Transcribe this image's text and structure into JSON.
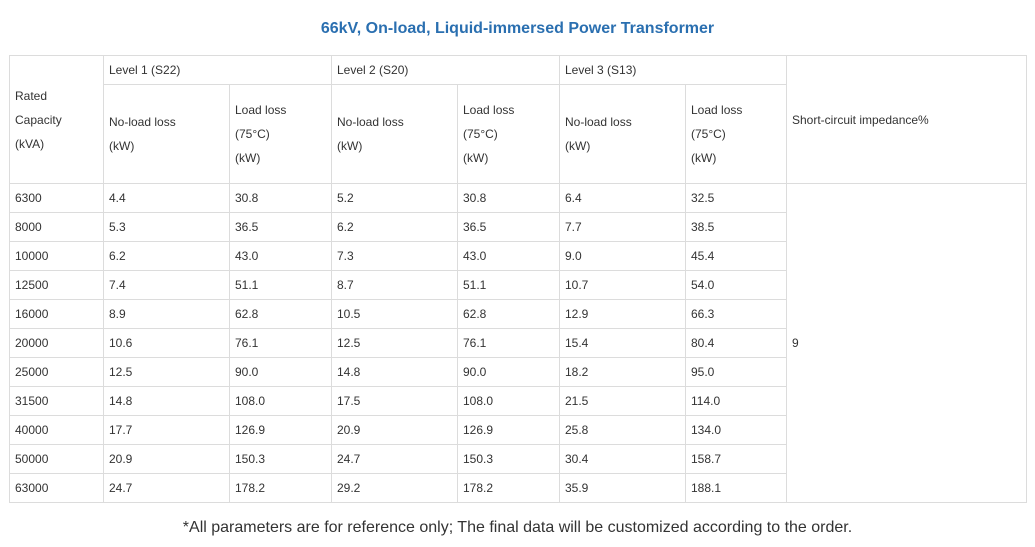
{
  "page": {
    "title": "66kV, On-load, Liquid-immersed Power Transformer",
    "note": "*All parameters are for reference only; The final data will be customized according to the order."
  },
  "colors": {
    "title": "#2a6fb0",
    "border": "#dcdcdc",
    "text": "#333333"
  },
  "chart_data": {
    "type": "table",
    "title": "66kV, On-load, Liquid-immersed Power Transformer",
    "header": {
      "rated_capacity": [
        "Rated",
        "Capacity",
        "(kVA)"
      ],
      "levels": [
        "Level 1 (S22)",
        "Level 2 (S20)",
        "Level 3 (S13)"
      ],
      "no_load_loss": [
        "No-load loss",
        "(kW)"
      ],
      "load_loss": [
        "Load loss",
        "(75°C)",
        "(kW)"
      ],
      "impedance": "Short-circuit impedance%"
    },
    "rows": [
      {
        "capacity": "6300",
        "l1_noload": "4.4",
        "l1_load": "30.8",
        "l2_noload": "5.2",
        "l2_load": "30.8",
        "l3_noload": "6.4",
        "l3_load": "32.5"
      },
      {
        "capacity": "8000",
        "l1_noload": "5.3",
        "l1_load": "36.5",
        "l2_noload": "6.2",
        "l2_load": "36.5",
        "l3_noload": "7.7",
        "l3_load": "38.5"
      },
      {
        "capacity": "10000",
        "l1_noload": "6.2",
        "l1_load": "43.0",
        "l2_noload": "7.3",
        "l2_load": "43.0",
        "l3_noload": "9.0",
        "l3_load": "45.4"
      },
      {
        "capacity": "12500",
        "l1_noload": "7.4",
        "l1_load": "51.1",
        "l2_noload": "8.7",
        "l2_load": "51.1",
        "l3_noload": "10.7",
        "l3_load": "54.0"
      },
      {
        "capacity": "16000",
        "l1_noload": "8.9",
        "l1_load": "62.8",
        "l2_noload": "10.5",
        "l2_load": "62.8",
        "l3_noload": "12.9",
        "l3_load": "66.3"
      },
      {
        "capacity": "20000",
        "l1_noload": "10.6",
        "l1_load": "76.1",
        "l2_noload": "12.5",
        "l2_load": "76.1",
        "l3_noload": "15.4",
        "l3_load": "80.4"
      },
      {
        "capacity": "25000",
        "l1_noload": "12.5",
        "l1_load": "90.0",
        "l2_noload": "14.8",
        "l2_load": "90.0",
        "l3_noload": "18.2",
        "l3_load": "95.0"
      },
      {
        "capacity": "31500",
        "l1_noload": "14.8",
        "l1_load": "108.0",
        "l2_noload": "17.5",
        "l2_load": "108.0",
        "l3_noload": "21.5",
        "l3_load": "114.0"
      },
      {
        "capacity": "40000",
        "l1_noload": "17.7",
        "l1_load": "126.9",
        "l2_noload": "20.9",
        "l2_load": "126.9",
        "l3_noload": "25.8",
        "l3_load": "134.0"
      },
      {
        "capacity": "50000",
        "l1_noload": "20.9",
        "l1_load": "150.3",
        "l2_noload": "24.7",
        "l2_load": "150.3",
        "l3_noload": "30.4",
        "l3_load": "158.7"
      },
      {
        "capacity": "63000",
        "l1_noload": "24.7",
        "l1_load": "178.2",
        "l2_noload": "29.2",
        "l2_load": "178.2",
        "l3_noload": "35.9",
        "l3_load": "188.1"
      }
    ],
    "impedance_value": "9"
  }
}
